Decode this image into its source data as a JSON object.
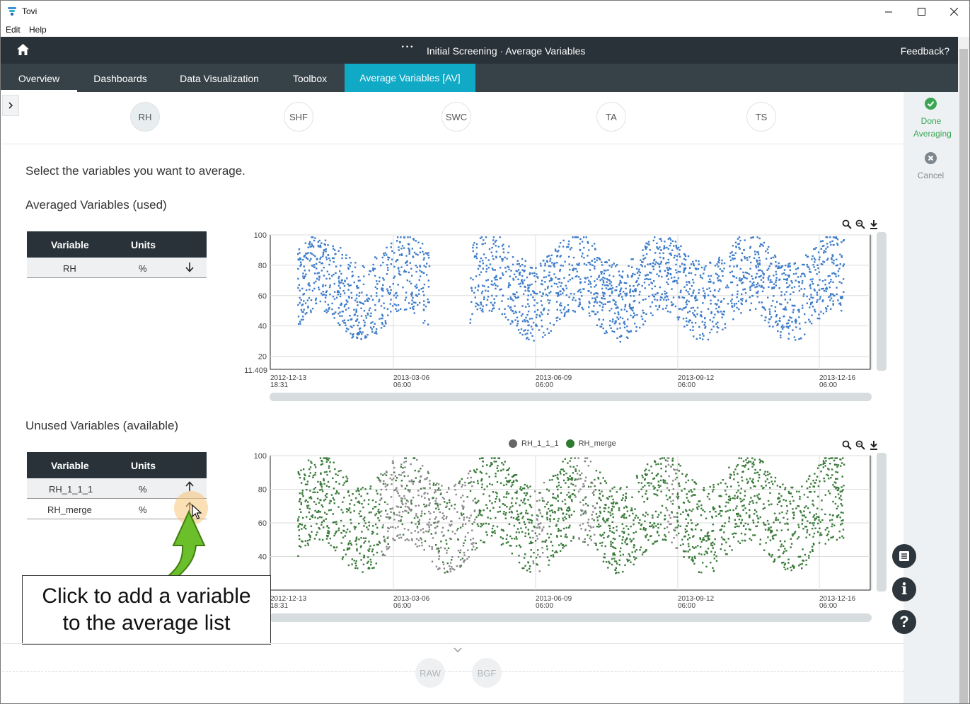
{
  "window": {
    "title": "Tovi"
  },
  "menu": [
    "Edit",
    "Help"
  ],
  "header": {
    "breadcrumb": "Initial Screening · Average Variables",
    "feedback": "Feedback?"
  },
  "tabs": [
    "Overview",
    "Dashboards",
    "Data Visualization",
    "Toolbox",
    "Average Variables [AV]"
  ],
  "variables": [
    "RH",
    "SHF",
    "SWC",
    "TA",
    "TS"
  ],
  "instructions": "Select the variables you want to average.",
  "averaged": {
    "title": "Averaged Variables (used)",
    "columns": [
      "Variable",
      "Units"
    ],
    "rows": [
      {
        "variable": "RH",
        "units": "%"
      }
    ]
  },
  "unused": {
    "title": "Unused Variables (available)",
    "columns": [
      "Variable",
      "Units"
    ],
    "rows": [
      {
        "variable": "RH_1_1_1",
        "units": "%"
      },
      {
        "variable": "RH_merge",
        "units": "%"
      }
    ]
  },
  "actions": {
    "done": "Done Averaging",
    "cancel": "Cancel"
  },
  "chart_data": [
    {
      "type": "scatter",
      "series": [
        {
          "name": "",
          "color": "#3d7cc9"
        }
      ],
      "x_ticks": [
        [
          "2012-12-13",
          "18:31"
        ],
        [
          "2013-03-06",
          "06:00"
        ],
        [
          "2013-06-09",
          "06:00"
        ],
        [
          "2013-09-12",
          "06:00"
        ],
        [
          "2013-12-16",
          "06:00"
        ]
      ],
      "y_ticks": [
        "100",
        "80",
        "60",
        "40",
        "20"
      ],
      "y_min_label": "11.409",
      "ylim": [
        11.409,
        100
      ],
      "grid": true
    },
    {
      "type": "scatter",
      "series": [
        {
          "name": "RH_1_1_1",
          "color": "#888888"
        },
        {
          "name": "RH_merge",
          "color": "#3a7a3a"
        }
      ],
      "x_ticks": [
        [
          "2012-12-13",
          "18:31"
        ],
        [
          "2013-03-06",
          "06:00"
        ],
        [
          "2013-06-09",
          "06:00"
        ],
        [
          "2013-09-12",
          "06:00"
        ],
        [
          "2013-12-16",
          "06:00"
        ]
      ],
      "y_ticks": [
        "100",
        "80",
        "60",
        "40"
      ],
      "ylim": [
        20,
        100
      ],
      "grid": true
    }
  ],
  "callout": {
    "line1": "Click to add a variable",
    "line2": "to the average list"
  },
  "bottom": [
    "RAW",
    "BGF"
  ]
}
